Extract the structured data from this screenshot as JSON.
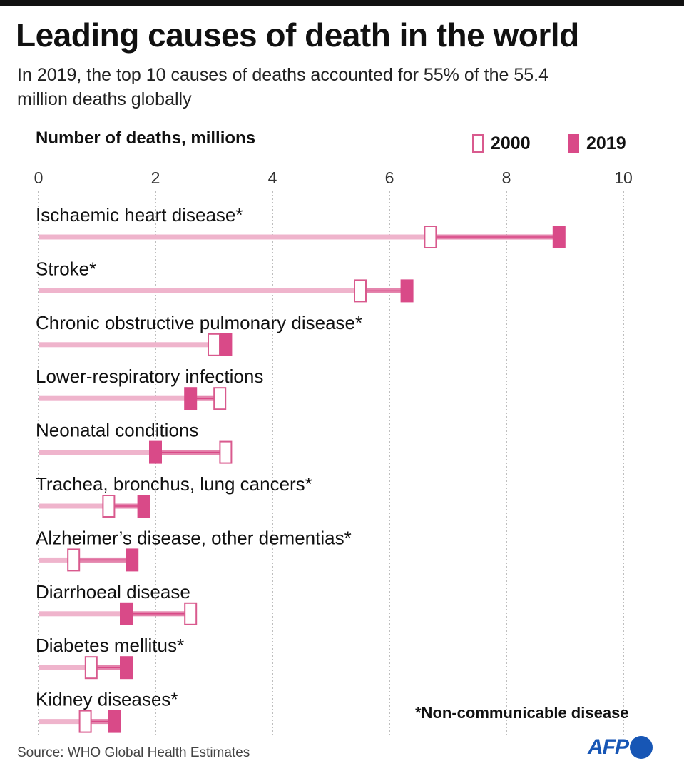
{
  "title": "Leading causes of death in the world",
  "subtitle": "In 2019, the top 10 causes of deaths accounted for 55% of the 55.4 million deaths globally",
  "footnote": "*Non-communicable disease",
  "source": "Source: WHO Global Health Estimates",
  "logo": {
    "text": "AFP"
  },
  "colors": {
    "marker_2000_border": "#d95a8e",
    "marker_2019": "#d94a88",
    "bar_base": "#efb4cc",
    "bar_range": "#e485ad"
  },
  "chart_data": {
    "type": "dumbbell",
    "xlabel": "Number of deaths, millions",
    "xlim": [
      0,
      10
    ],
    "xticks": [
      "0",
      "2",
      "4",
      "6",
      "8",
      "10"
    ],
    "grid": true,
    "legend": {
      "placement": "top-right",
      "entries": [
        "2000",
        "2019"
      ]
    },
    "categories": [
      "Ischaemic heart disease*",
      "Stroke*",
      "Chronic obstructive pulmonary disease*",
      "Lower-respiratory infections",
      "Neonatal conditions",
      "Trachea, bronchus, lung cancers*",
      "Alzheimer’s disease, other dementias*",
      "Diarrhoeal disease",
      "Diabetes mellitus*",
      "Kidney diseases*"
    ],
    "series": [
      {
        "name": "2000",
        "values": [
          6.7,
          5.5,
          3.0,
          3.1,
          3.2,
          1.2,
          0.6,
          2.6,
          0.9,
          0.8
        ]
      },
      {
        "name": "2019",
        "values": [
          8.9,
          6.3,
          3.2,
          2.6,
          2.0,
          1.8,
          1.6,
          1.5,
          1.5,
          1.3
        ]
      }
    ]
  }
}
